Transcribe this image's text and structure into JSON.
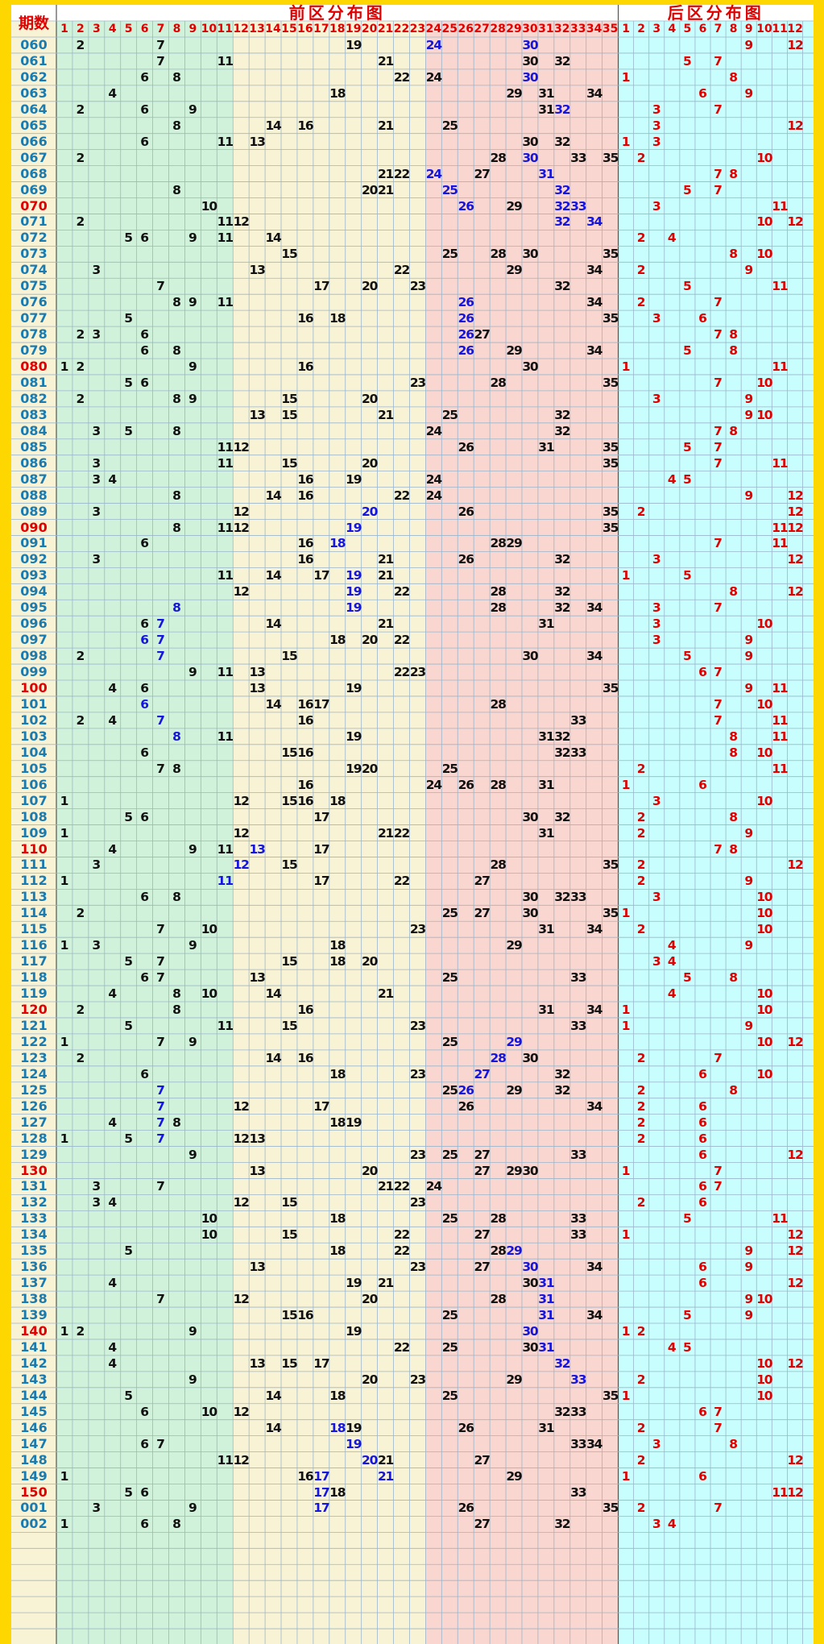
{
  "header": {
    "period_label": "期数",
    "front_title": "前区分布图",
    "back_title": "后区分布图",
    "front_columns": [
      "1",
      "2",
      "3",
      "4",
      "5",
      "6",
      "7",
      "8",
      "9",
      "10",
      "11",
      "12",
      "13",
      "14",
      "15",
      "16",
      "17",
      "18",
      "19",
      "20",
      "21",
      "22",
      "23",
      "24",
      "25",
      "26",
      "27",
      "28",
      "29",
      "30",
      "31",
      "32",
      "33",
      "34",
      "35"
    ],
    "back_columns": [
      "1",
      "2",
      "3",
      "4",
      "5",
      "6",
      "7",
      "8",
      "9",
      "10",
      "11",
      "12"
    ]
  },
  "colors": {
    "frame": "#ffd700",
    "zone1": "#d1f2da",
    "zone2": "#f9f3d6",
    "zone3": "#f9d6cf",
    "back_zone": "#c8fefd",
    "period_bg": "#f9f3d6",
    "header_text": "#e00000",
    "period_text": "#1a7bb0",
    "period_text_special": "#e00000",
    "number_normal": "#111111",
    "number_repeat": "#1515e0",
    "back_number": "#e00000"
  },
  "rows": [
    {
      "period": "060",
      "front": [
        2,
        7,
        19,
        24,
        30
      ],
      "blue": [
        24,
        30
      ],
      "back": [
        9,
        12
      ]
    },
    {
      "period": "061",
      "front": [
        7,
        11,
        21,
        30,
        32
      ],
      "blue": [],
      "back": [
        5,
        7
      ]
    },
    {
      "period": "062",
      "front": [
        6,
        8,
        22,
        24,
        30
      ],
      "blue": [
        30
      ],
      "back": [
        1,
        8
      ]
    },
    {
      "period": "063",
      "front": [
        4,
        18,
        29,
        31,
        34
      ],
      "blue": [],
      "back": [
        6,
        9
      ]
    },
    {
      "period": "064",
      "front": [
        2,
        6,
        9,
        31,
        32
      ],
      "blue": [
        32
      ],
      "back": [
        3,
        7
      ]
    },
    {
      "period": "065",
      "front": [
        8,
        14,
        16,
        21,
        25
      ],
      "blue": [],
      "back": [
        3,
        12
      ]
    },
    {
      "period": "066",
      "front": [
        6,
        11,
        13,
        30,
        32
      ],
      "blue": [],
      "back": [
        1,
        3
      ]
    },
    {
      "period": "067",
      "front": [
        2,
        28,
        30,
        33,
        35
      ],
      "blue": [
        30
      ],
      "back": [
        2,
        10
      ]
    },
    {
      "period": "068",
      "front": [
        21,
        22,
        24,
        27,
        31
      ],
      "blue": [
        24,
        31
      ],
      "back": [
        7,
        8
      ]
    },
    {
      "period": "069",
      "front": [
        8,
        20,
        21,
        25,
        32
      ],
      "blue": [
        25,
        32
      ],
      "back": [
        5,
        7
      ]
    },
    {
      "period": "070",
      "front": [
        10,
        26,
        29,
        32,
        33
      ],
      "blue": [
        26,
        32,
        33
      ],
      "back": [
        3,
        11
      ]
    },
    {
      "period": "071",
      "front": [
        2,
        11,
        12,
        32,
        34
      ],
      "blue": [
        32,
        34
      ],
      "back": [
        10,
        12
      ]
    },
    {
      "period": "072",
      "front": [
        5,
        6,
        9,
        11,
        14
      ],
      "blue": [],
      "back": [
        2,
        4
      ]
    },
    {
      "period": "073",
      "front": [
        15,
        25,
        28,
        30,
        35
      ],
      "blue": [],
      "back": [
        8,
        10
      ]
    },
    {
      "period": "074",
      "front": [
        3,
        13,
        22,
        29,
        34
      ],
      "blue": [],
      "back": [
        2,
        9
      ]
    },
    {
      "period": "075",
      "front": [
        7,
        17,
        20,
        23,
        32
      ],
      "blue": [],
      "back": [
        5,
        11
      ]
    },
    {
      "period": "076",
      "front": [
        8,
        9,
        11,
        26,
        34
      ],
      "blue": [
        26
      ],
      "back": [
        2,
        7
      ]
    },
    {
      "period": "077",
      "front": [
        5,
        16,
        18,
        26,
        35
      ],
      "blue": [
        26
      ],
      "back": [
        3,
        6
      ]
    },
    {
      "period": "078",
      "front": [
        2,
        3,
        6,
        26,
        27
      ],
      "blue": [
        26
      ],
      "back": [
        7,
        8
      ]
    },
    {
      "period": "079",
      "front": [
        6,
        8,
        26,
        29,
        34
      ],
      "blue": [
        26
      ],
      "back": [
        5,
        8
      ]
    },
    {
      "period": "080",
      "front": [
        1,
        2,
        9,
        16,
        30
      ],
      "blue": [],
      "back": [
        1,
        11
      ]
    },
    {
      "period": "081",
      "front": [
        5,
        6,
        23,
        28,
        35
      ],
      "blue": [],
      "back": [
        7,
        10
      ]
    },
    {
      "period": "082",
      "front": [
        2,
        8,
        9,
        15,
        20
      ],
      "blue": [],
      "back": [
        3,
        9
      ]
    },
    {
      "period": "083",
      "front": [
        13,
        15,
        21,
        25,
        32
      ],
      "blue": [],
      "back": [
        9,
        10
      ]
    },
    {
      "period": "084",
      "front": [
        3,
        5,
        8,
        24,
        32
      ],
      "blue": [],
      "back": [
        7,
        8
      ]
    },
    {
      "period": "085",
      "front": [
        11,
        12,
        26,
        31,
        35
      ],
      "blue": [],
      "back": [
        5,
        7
      ]
    },
    {
      "period": "086",
      "front": [
        3,
        11,
        15,
        20,
        35
      ],
      "blue": [],
      "back": [
        7,
        11
      ]
    },
    {
      "period": "087",
      "front": [
        3,
        4,
        16,
        19,
        24
      ],
      "blue": [],
      "back": [
        4,
        5
      ]
    },
    {
      "period": "088",
      "front": [
        8,
        14,
        16,
        22,
        24
      ],
      "blue": [],
      "back": [
        9,
        12
      ]
    },
    {
      "period": "089",
      "front": [
        3,
        12,
        20,
        26,
        35
      ],
      "blue": [
        20
      ],
      "back": [
        2,
        12
      ]
    },
    {
      "period": "090",
      "front": [
        8,
        11,
        12,
        19,
        35
      ],
      "blue": [
        19
      ],
      "back": [
        11,
        12
      ]
    },
    {
      "period": "091",
      "front": [
        6,
        16,
        18,
        28,
        29
      ],
      "blue": [
        18
      ],
      "back": [
        7,
        11
      ]
    },
    {
      "period": "092",
      "front": [
        3,
        16,
        21,
        26,
        32
      ],
      "blue": [],
      "back": [
        3,
        12
      ]
    },
    {
      "period": "093",
      "front": [
        11,
        14,
        17,
        19,
        21
      ],
      "blue": [
        19
      ],
      "back": [
        1,
        5
      ]
    },
    {
      "period": "094",
      "front": [
        12,
        19,
        22,
        28,
        32
      ],
      "blue": [
        19
      ],
      "back": [
        8,
        12
      ]
    },
    {
      "period": "095",
      "front": [
        8,
        19,
        28,
        32,
        34
      ],
      "blue": [
        8,
        19
      ],
      "back": [
        3,
        7
      ]
    },
    {
      "period": "096",
      "front": [
        6,
        7,
        14,
        21,
        31
      ],
      "blue": [
        7
      ],
      "back": [
        3,
        10
      ]
    },
    {
      "period": "097",
      "front": [
        6,
        7,
        18,
        20,
        22
      ],
      "blue": [
        6,
        7
      ],
      "back": [
        3,
        9
      ]
    },
    {
      "period": "098",
      "front": [
        2,
        7,
        15,
        30,
        34
      ],
      "blue": [
        7
      ],
      "back": [
        5,
        9
      ]
    },
    {
      "period": "099",
      "front": [
        9,
        11,
        13,
        22,
        23
      ],
      "blue": [],
      "back": [
        6,
        7
      ]
    },
    {
      "period": "100",
      "front": [
        4,
        6,
        13,
        19,
        35
      ],
      "blue": [],
      "back": [
        9,
        11
      ]
    },
    {
      "period": "101",
      "front": [
        6,
        14,
        16,
        17,
        28
      ],
      "blue": [
        6
      ],
      "back": [
        7,
        10
      ]
    },
    {
      "period": "102",
      "front": [
        2,
        4,
        7,
        16,
        33
      ],
      "blue": [
        7
      ],
      "back": [
        7,
        11
      ]
    },
    {
      "period": "103",
      "front": [
        8,
        11,
        19,
        31,
        32
      ],
      "blue": [
        8
      ],
      "back": [
        8,
        11
      ]
    },
    {
      "period": "104",
      "front": [
        6,
        15,
        16,
        32,
        33
      ],
      "blue": [],
      "back": [
        8,
        10
      ]
    },
    {
      "period": "105",
      "front": [
        7,
        8,
        19,
        20,
        25
      ],
      "blue": [],
      "back": [
        2,
        11
      ]
    },
    {
      "period": "106",
      "front": [
        16,
        24,
        26,
        28,
        31
      ],
      "blue": [],
      "back": [
        1,
        6
      ]
    },
    {
      "period": "107",
      "front": [
        1,
        12,
        15,
        16,
        18
      ],
      "blue": [],
      "back": [
        3,
        10
      ]
    },
    {
      "period": "108",
      "front": [
        5,
        6,
        17,
        30,
        32
      ],
      "blue": [],
      "back": [
        2,
        8
      ]
    },
    {
      "period": "109",
      "front": [
        1,
        12,
        21,
        22,
        31
      ],
      "blue": [],
      "back": [
        2,
        9
      ]
    },
    {
      "period": "110",
      "front": [
        4,
        9,
        11,
        13,
        17
      ],
      "blue": [
        13
      ],
      "back": [
        7,
        8
      ]
    },
    {
      "period": "111",
      "front": [
        3,
        12,
        15,
        28,
        35
      ],
      "blue": [
        12
      ],
      "back": [
        2,
        12
      ]
    },
    {
      "period": "112",
      "front": [
        1,
        11,
        17,
        22,
        27
      ],
      "blue": [
        11
      ],
      "back": [
        2,
        9
      ]
    },
    {
      "period": "113",
      "front": [
        6,
        8,
        30,
        32,
        33
      ],
      "blue": [],
      "back": [
        3,
        10
      ]
    },
    {
      "period": "114",
      "front": [
        2,
        25,
        27,
        30,
        35
      ],
      "blue": [],
      "back": [
        1,
        10
      ]
    },
    {
      "period": "115",
      "front": [
        7,
        10,
        23,
        31,
        34
      ],
      "blue": [],
      "back": [
        2,
        10
      ]
    },
    {
      "period": "116",
      "front": [
        1,
        3,
        9,
        18,
        29
      ],
      "blue": [],
      "back": [
        4,
        9
      ]
    },
    {
      "period": "117",
      "front": [
        5,
        7,
        15,
        18,
        20
      ],
      "blue": [],
      "back": [
        3,
        4
      ]
    },
    {
      "period": "118",
      "front": [
        6,
        7,
        13,
        25,
        33
      ],
      "blue": [],
      "back": [
        5,
        8
      ]
    },
    {
      "period": "119",
      "front": [
        4,
        8,
        10,
        14,
        21
      ],
      "blue": [],
      "back": [
        4,
        10
      ]
    },
    {
      "period": "120",
      "front": [
        2,
        8,
        16,
        31,
        34
      ],
      "blue": [],
      "back": [
        1,
        10
      ]
    },
    {
      "period": "121",
      "front": [
        5,
        11,
        15,
        23,
        33
      ],
      "blue": [],
      "back": [
        1,
        9
      ]
    },
    {
      "period": "122",
      "front": [
        1,
        7,
        9,
        25,
        29
      ],
      "blue": [
        29
      ],
      "back": [
        10,
        12
      ]
    },
    {
      "period": "123",
      "front": [
        2,
        14,
        16,
        28,
        30
      ],
      "blue": [
        28
      ],
      "back": [
        2,
        7
      ]
    },
    {
      "period": "124",
      "front": [
        6,
        18,
        23,
        27,
        32
      ],
      "blue": [
        27
      ],
      "back": [
        6,
        10
      ]
    },
    {
      "period": "125",
      "front": [
        7,
        25,
        26,
        29,
        32
      ],
      "blue": [
        7,
        26
      ],
      "back": [
        2,
        8
      ]
    },
    {
      "period": "126",
      "front": [
        7,
        12,
        17,
        26,
        34
      ],
      "blue": [
        7
      ],
      "back": [
        2,
        6
      ]
    },
    {
      "period": "127",
      "front": [
        4,
        7,
        8,
        18,
        19
      ],
      "blue": [
        7
      ],
      "back": [
        2,
        6
      ]
    },
    {
      "period": "128",
      "front": [
        1,
        5,
        7,
        12,
        13
      ],
      "blue": [
        7
      ],
      "back": [
        2,
        6
      ]
    },
    {
      "period": "129",
      "front": [
        9,
        23,
        25,
        27,
        33
      ],
      "blue": [],
      "back": [
        6,
        12
      ]
    },
    {
      "period": "130",
      "front": [
        13,
        20,
        27,
        29,
        30
      ],
      "blue": [],
      "back": [
        1,
        7
      ]
    },
    {
      "period": "131",
      "front": [
        3,
        7,
        21,
        22,
        24
      ],
      "blue": [],
      "back": [
        6,
        7
      ]
    },
    {
      "period": "132",
      "front": [
        3,
        4,
        12,
        15,
        23
      ],
      "blue": [],
      "back": [
        2,
        6
      ]
    },
    {
      "period": "133",
      "front": [
        10,
        18,
        25,
        28,
        33
      ],
      "blue": [],
      "back": [
        5,
        11
      ]
    },
    {
      "period": "134",
      "front": [
        10,
        15,
        22,
        27,
        33
      ],
      "blue": [],
      "back": [
        1,
        12
      ]
    },
    {
      "period": "135",
      "front": [
        5,
        18,
        22,
        28,
        29
      ],
      "blue": [
        29
      ],
      "back": [
        9,
        12
      ]
    },
    {
      "period": "136",
      "front": [
        13,
        23,
        27,
        30,
        34
      ],
      "blue": [
        30
      ],
      "back": [
        6,
        9
      ]
    },
    {
      "period": "137",
      "front": [
        4,
        19,
        21,
        30,
        31
      ],
      "blue": [
        31
      ],
      "back": [
        6,
        12
      ]
    },
    {
      "period": "138",
      "front": [
        7,
        12,
        20,
        28,
        31
      ],
      "blue": [
        31
      ],
      "back": [
        9,
        10
      ]
    },
    {
      "period": "139",
      "front": [
        15,
        16,
        25,
        31,
        34
      ],
      "blue": [
        31
      ],
      "back": [
        5,
        9
      ]
    },
    {
      "period": "140",
      "front": [
        1,
        2,
        9,
        19,
        30
      ],
      "blue": [
        30
      ],
      "back": [
        1,
        2
      ]
    },
    {
      "period": "141",
      "front": [
        4,
        22,
        25,
        30,
        31
      ],
      "blue": [
        31
      ],
      "back": [
        4,
        5
      ]
    },
    {
      "period": "142",
      "front": [
        4,
        13,
        15,
        17,
        32
      ],
      "blue": [
        32
      ],
      "back": [
        10,
        12
      ]
    },
    {
      "period": "143",
      "front": [
        9,
        20,
        23,
        29,
        33
      ],
      "blue": [
        33
      ],
      "back": [
        2,
        10
      ]
    },
    {
      "period": "144",
      "front": [
        5,
        14,
        18,
        25,
        35
      ],
      "blue": [],
      "back": [
        1,
        10
      ]
    },
    {
      "period": "145",
      "front": [
        6,
        10,
        12,
        32,
        33
      ],
      "blue": [],
      "back": [
        6,
        7
      ]
    },
    {
      "period": "146",
      "front": [
        14,
        18,
        19,
        26,
        31
      ],
      "blue": [
        18
      ],
      "back": [
        2,
        7
      ]
    },
    {
      "period": "147",
      "front": [
        6,
        7,
        19,
        33,
        34
      ],
      "blue": [
        19
      ],
      "back": [
        3,
        8
      ]
    },
    {
      "period": "148",
      "front": [
        11,
        12,
        20,
        21,
        27
      ],
      "blue": [
        20
      ],
      "back": [
        2,
        12
      ]
    },
    {
      "period": "149",
      "front": [
        1,
        16,
        17,
        21,
        29
      ],
      "blue": [
        17,
        21
      ],
      "back": [
        1,
        6
      ]
    },
    {
      "period": "150",
      "front": [
        5,
        6,
        17,
        18,
        33
      ],
      "blue": [
        17
      ],
      "back": [
        11,
        12
      ]
    },
    {
      "period": "001",
      "front": [
        3,
        9,
        17,
        26,
        35
      ],
      "blue": [
        17
      ],
      "back": [
        2,
        7
      ]
    },
    {
      "period": "002",
      "front": [
        1,
        6,
        8,
        27,
        32
      ],
      "blue": [],
      "back": [
        3,
        4
      ]
    }
  ]
}
